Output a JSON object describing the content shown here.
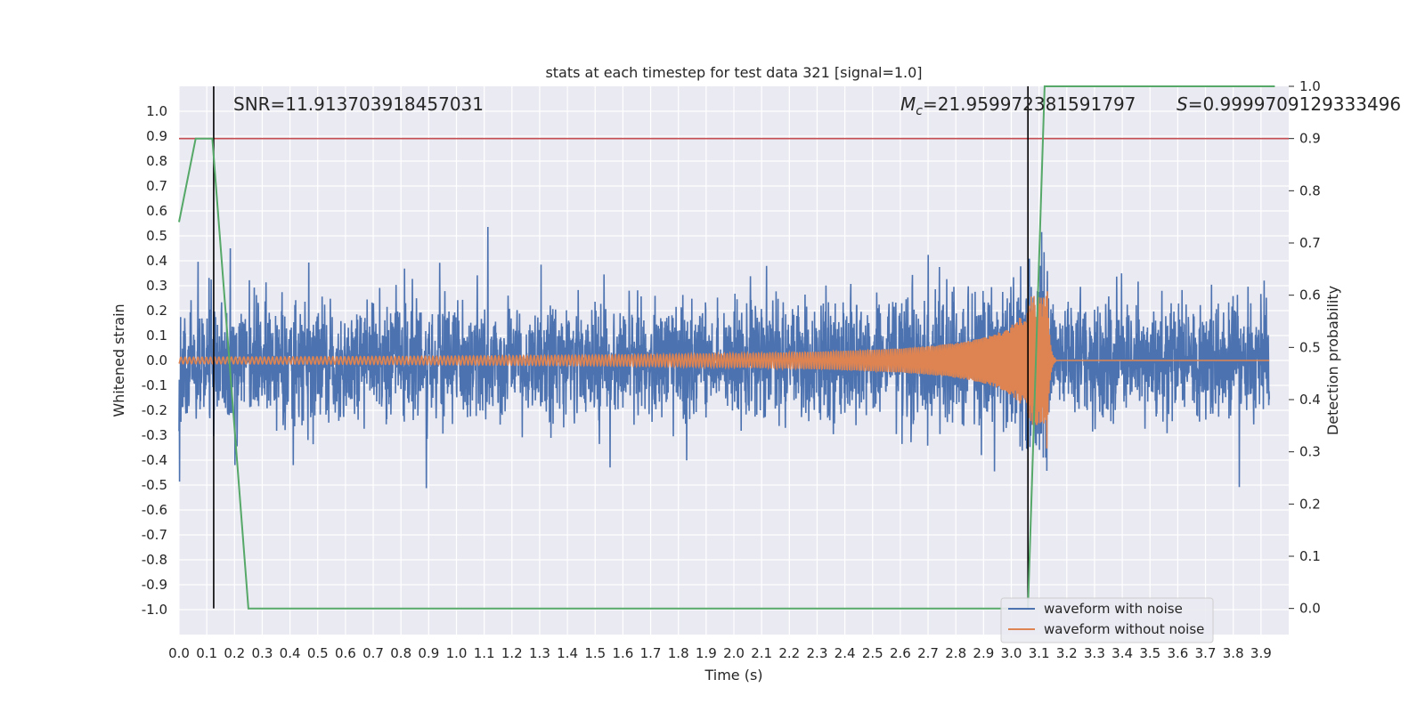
{
  "chart_data": {
    "type": "line",
    "title": "stats at each timestep for test data 321 [signal=1.0]",
    "xlabel": "Time (s)",
    "ylabel": "Whitened strain",
    "y2label": "Detection probability",
    "xlim": [
      0.0,
      4.0
    ],
    "ylim": [
      -1.1,
      1.1
    ],
    "y2lim": [
      -0.05,
      1.0
    ],
    "xticks": [
      "0.0",
      "0.1",
      "0.2",
      "0.3",
      "0.4",
      "0.5",
      "0.6",
      "0.7",
      "0.8",
      "0.9",
      "1.0",
      "1.1",
      "1.2",
      "1.3",
      "1.4",
      "1.5",
      "1.6",
      "1.7",
      "1.8",
      "1.9",
      "2.0",
      "2.1",
      "2.2",
      "2.3",
      "2.4",
      "2.5",
      "2.6",
      "2.7",
      "2.8",
      "2.9",
      "3.0",
      "3.1",
      "3.2",
      "3.3",
      "3.4",
      "3.5",
      "3.6",
      "3.7",
      "3.8",
      "3.9"
    ],
    "yticks": [
      "1.0",
      "0.9",
      "0.8",
      "0.7",
      "0.6",
      "0.5",
      "0.4",
      "0.3",
      "0.2",
      "0.1",
      "0.0",
      "-0.1",
      "-0.2",
      "-0.3",
      "-0.4",
      "-0.5",
      "-0.6",
      "-0.7",
      "-0.8",
      "-0.9",
      "-1.0"
    ],
    "y2ticks": [
      "1.0",
      "0.9",
      "0.8",
      "0.7",
      "0.6",
      "0.5",
      "0.4",
      "0.3",
      "0.2",
      "0.1",
      "0.0"
    ],
    "annotations": {
      "snr": "SNR=11.913703918457031",
      "mc_symbol": "M",
      "mc_sub": "c",
      "mc_value": "=21.959972381591797",
      "s_symbol": "S",
      "s_value": "=0.9999709129333496"
    },
    "legend": {
      "placement": "lower-right",
      "items": [
        "waveform with noise",
        "waveform without noise"
      ]
    },
    "colors": {
      "noise": "#4c72b0",
      "clean": "#dd8452",
      "probability": "#55a868",
      "threshold": "#c44e52",
      "marker": "#000000",
      "background": "#eaeaf2",
      "grid": "#ffffff"
    },
    "threshold_y2": 0.9,
    "vlines_x": [
      0.125,
      3.06
    ],
    "series": [
      {
        "name": "detection probability",
        "axis": "right",
        "x": [
          0.0,
          0.06,
          0.12,
          0.25,
          2.0,
          3.06,
          3.12,
          3.2,
          3.95
        ],
        "y": [
          0.74,
          0.9,
          0.9,
          0.0,
          0.0,
          0.0,
          1.0,
          1.0,
          1.0
        ]
      }
    ]
  }
}
